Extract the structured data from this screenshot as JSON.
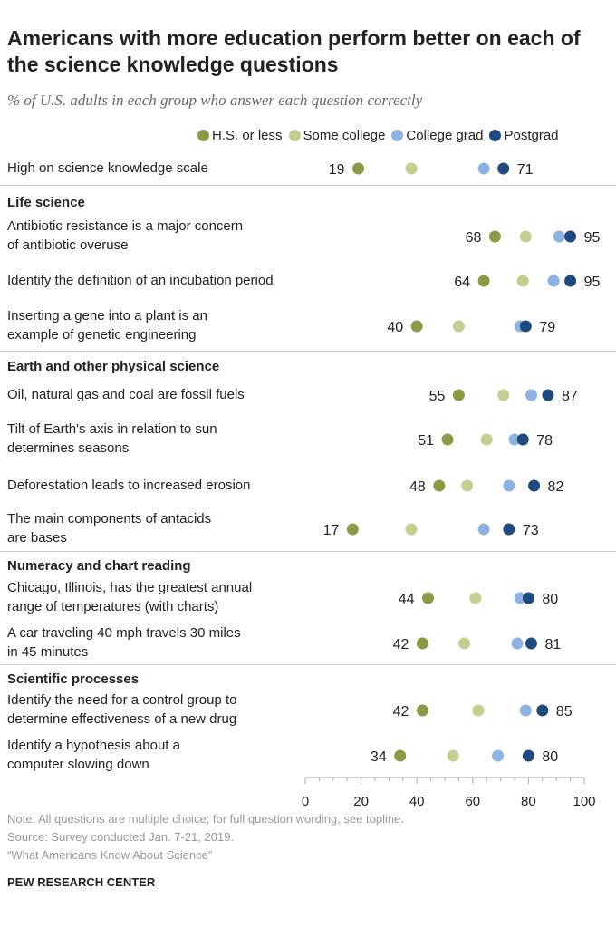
{
  "title": "Americans with more education perform better on each of the science knowledge questions",
  "subtitle": "% of U.S. adults in each group who answer each question correctly",
  "colors": {
    "hs": "#8d9a45",
    "sc": "#c5cd8f",
    "cg": "#8db3e2",
    "pg": "#1f4a80"
  },
  "chart_data": {
    "type": "dot",
    "xlim": [
      0,
      100
    ],
    "xticks": [
      "0",
      "20",
      "40",
      "60",
      "80",
      "100"
    ],
    "series": [
      {
        "name": "H.S. or less",
        "key": "hs"
      },
      {
        "name": "Some college",
        "key": "sc"
      },
      {
        "name": "College grad",
        "key": "cg"
      },
      {
        "name": "Postgrad",
        "key": "pg"
      }
    ],
    "sections": [
      "Life science",
      "Earth and other physical science",
      "Numeracy and chart reading",
      "Scientific processes"
    ],
    "rows": [
      {
        "label": [
          "High on science knowledge scale"
        ],
        "values": [
          19,
          38,
          64,
          71
        ]
      },
      {
        "label": [
          "Antibiotic resistance is a major concern",
          "of antibiotic overuse"
        ],
        "values": [
          68,
          79,
          91,
          95
        ]
      },
      {
        "label": [
          "Identify the definition of an incubation period"
        ],
        "values": [
          64,
          78,
          89,
          95
        ]
      },
      {
        "label": [
          "Inserting a gene into a plant is an",
          "example of genetic engineering"
        ],
        "values": [
          40,
          55,
          77,
          79
        ]
      },
      {
        "label": [
          "Oil, natural gas and coal are fossil fuels"
        ],
        "values": [
          55,
          71,
          81,
          87
        ]
      },
      {
        "label": [
          "Tilt of Earth's axis in relation to sun",
          "determines seasons"
        ],
        "values": [
          51,
          65,
          75,
          78
        ]
      },
      {
        "label": [
          "Deforestation leads to increased erosion"
        ],
        "values": [
          48,
          58,
          73,
          82
        ]
      },
      {
        "label": [
          "The main components of antacids",
          "are bases"
        ],
        "values": [
          17,
          38,
          64,
          73
        ]
      },
      {
        "label": [
          "Chicago, Illinois, has the greatest annual",
          "range of temperatures (with charts)"
        ],
        "values": [
          44,
          61,
          77,
          80
        ]
      },
      {
        "label": [
          "A car traveling 40 mph travels 30 miles",
          "in 45 minutes"
        ],
        "values": [
          42,
          57,
          76,
          81
        ]
      },
      {
        "label": [
          "Identify the need for a control group to",
          "determine effectiveness of a new drug"
        ],
        "values": [
          42,
          62,
          79,
          85
        ]
      },
      {
        "label": [
          "Identify a hypothesis about a",
          "computer slowing down"
        ],
        "values": [
          34,
          53,
          69,
          80
        ]
      }
    ]
  },
  "notes": [
    "Note: All questions are multiple choice; for full question wording, see topline.",
    "Source: Survey conducted Jan. 7-21, 2019.",
    "“What Americans Know About Science”"
  ],
  "footer": "PEW RESEARCH CENTER"
}
